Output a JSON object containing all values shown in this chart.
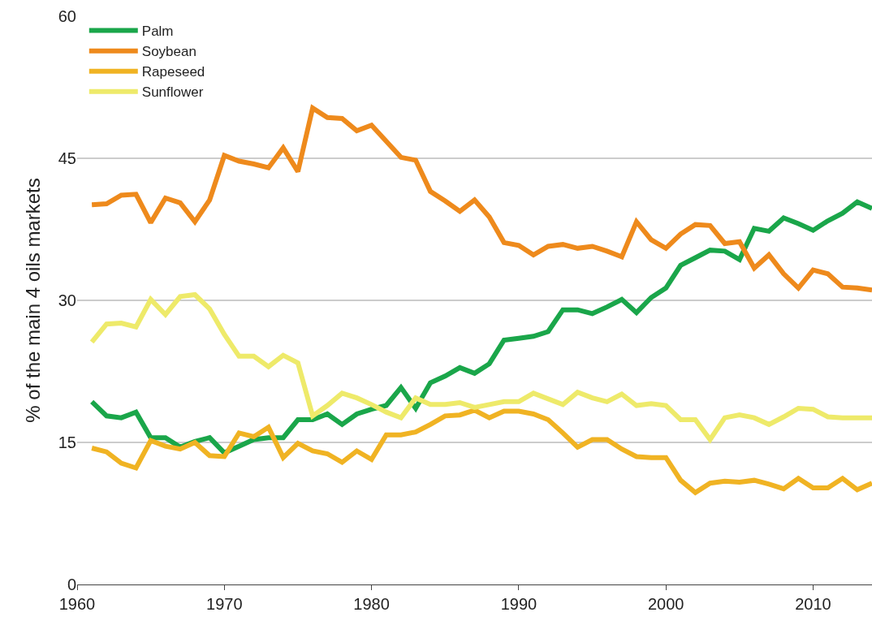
{
  "chart_data": {
    "type": "line",
    "ylabel": "% of the main 4 oils markets",
    "x": [
      1961,
      1962,
      1963,
      1964,
      1965,
      1966,
      1967,
      1968,
      1969,
      1970,
      1971,
      1972,
      1973,
      1974,
      1975,
      1976,
      1977,
      1978,
      1979,
      1980,
      1981,
      1982,
      1983,
      1984,
      1985,
      1986,
      1987,
      1988,
      1989,
      1990,
      1991,
      1992,
      1993,
      1994,
      1995,
      1996,
      1997,
      1998,
      1999,
      2000,
      2001,
      2002,
      2003,
      2004,
      2005,
      2006,
      2007,
      2008,
      2009,
      2010,
      2011,
      2012,
      2013,
      2014
    ],
    "series": [
      {
        "name": "Palm",
        "color": "#1aa64a",
        "values": [
          19.3,
          17.8,
          17.6,
          18.2,
          15.5,
          15.5,
          14.5,
          15.1,
          15.5,
          13.9,
          14.6,
          15.3,
          15.5,
          15.5,
          17.4,
          17.4,
          18.0,
          16.9,
          18.0,
          18.5,
          18.9,
          20.8,
          18.6,
          21.3,
          22.0,
          22.9,
          22.3,
          23.3,
          25.8,
          26.0,
          26.2,
          26.7,
          29.0,
          29.0,
          28.6,
          29.3,
          30.1,
          28.7,
          30.3,
          31.3,
          33.7,
          34.5,
          35.3,
          35.2,
          34.3,
          37.6,
          37.3,
          38.7,
          38.1,
          37.4,
          38.4,
          39.2,
          40.4,
          39.7
        ]
      },
      {
        "name": "Soybean",
        "color": "#ee8a1c",
        "values": [
          40.1,
          40.2,
          41.1,
          41.2,
          38.2,
          40.8,
          40.3,
          38.3,
          40.6,
          45.3,
          44.7,
          44.4,
          44.0,
          46.1,
          43.6,
          50.3,
          49.3,
          49.2,
          47.9,
          48.5,
          46.8,
          45.1,
          44.8,
          41.5,
          40.5,
          39.4,
          40.6,
          38.8,
          36.1,
          35.8,
          34.8,
          35.7,
          35.9,
          35.5,
          35.7,
          35.2,
          34.6,
          38.3,
          36.4,
          35.5,
          37.0,
          38.0,
          37.9,
          36.0,
          36.2,
          33.4,
          34.8,
          32.8,
          31.3,
          33.2,
          32.8,
          31.4,
          31.3,
          31.1
        ]
      },
      {
        "name": "Rapeseed",
        "color": "#f0b323",
        "values": [
          14.4,
          14.0,
          12.8,
          12.3,
          15.2,
          14.6,
          14.3,
          15.0,
          13.6,
          13.5,
          16.0,
          15.6,
          16.6,
          13.4,
          14.9,
          14.1,
          13.8,
          12.9,
          14.1,
          13.2,
          15.8,
          15.8,
          16.1,
          16.9,
          17.8,
          17.9,
          18.4,
          17.6,
          18.3,
          18.3,
          18.0,
          17.4,
          16.0,
          14.5,
          15.3,
          15.3,
          14.3,
          13.5,
          13.4,
          13.4,
          11.0,
          9.7,
          10.7,
          10.9,
          10.8,
          11.0,
          10.6,
          10.1,
          11.2,
          10.2,
          10.2,
          11.2,
          10.0,
          10.7
        ]
      },
      {
        "name": "Sunflower",
        "color": "#eeea6a",
        "values": [
          25.6,
          27.5,
          27.6,
          27.2,
          30.1,
          28.5,
          30.4,
          30.6,
          29.1,
          26.4,
          24.1,
          24.1,
          23.0,
          24.2,
          23.4,
          17.8,
          18.9,
          20.2,
          19.7,
          19.0,
          18.2,
          17.6,
          19.7,
          19.0,
          19.0,
          19.2,
          18.7,
          19.0,
          19.3,
          19.3,
          20.2,
          19.6,
          19.0,
          20.3,
          19.7,
          19.3,
          20.1,
          18.9,
          19.1,
          18.9,
          17.4,
          17.4,
          15.3,
          17.6,
          17.9,
          17.6,
          16.9,
          17.7,
          18.6,
          18.5,
          17.7,
          17.6,
          17.6,
          17.6
        ]
      }
    ],
    "xlim": [
      1960,
      2014
    ],
    "xticks": [
      1960,
      1970,
      1980,
      1990,
      2000,
      2010
    ],
    "ylim": [
      0,
      60
    ],
    "yticks": [
      0,
      15,
      30,
      45,
      60
    ],
    "grid": "y",
    "legend": "top left",
    "marker": "none",
    "line_style": "solid"
  }
}
